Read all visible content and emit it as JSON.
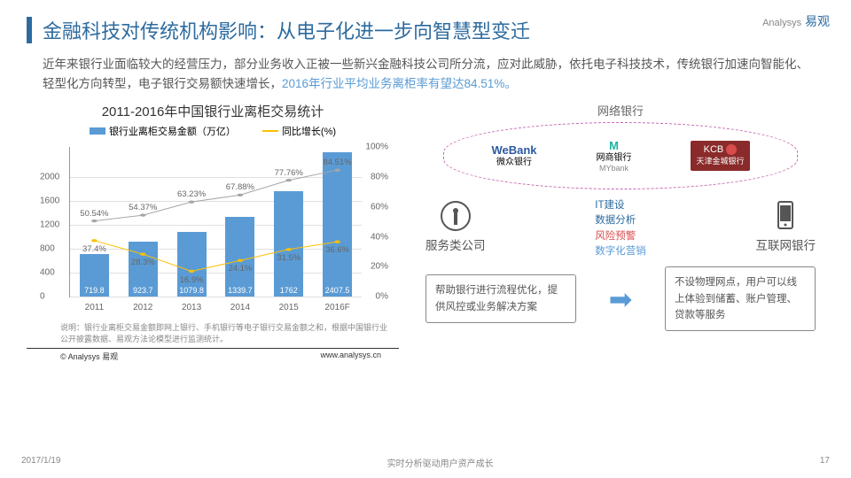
{
  "header": {
    "title": "金融科技对传统机构影响：从电子化进一步向智慧型变迁"
  },
  "logo": {
    "en": "Analysys",
    "cn": "易观"
  },
  "desc": {
    "text1": "近年来银行业面临较大的经营压力，部分业务收入正被一些新兴金融科技公司所分流，应对此威胁，依托电子科技技术，传统银行加速向智能化、轻型化方向转型，电子银行交易额快速增长，",
    "text2": "2016年行业平均业务离柜率有望达84.51%。"
  },
  "chart": {
    "title": "2011-2016年中国银行业离柜交易统计",
    "legend_bar": "银行业离柜交易金额（万亿）",
    "legend_line": "同比增长(%)",
    "categories": [
      "2011",
      "2012",
      "2013",
      "2014",
      "2015",
      "2016F"
    ],
    "bars": [
      719.8,
      923.7,
      1079.8,
      1339.7,
      1762.0,
      2407.5
    ],
    "bar_color": "#5a9bd5",
    "y_ticks": [
      0,
      400,
      800,
      1200,
      1600,
      2000
    ],
    "y_max": 2000,
    "rate_yellow": [
      37.4,
      28.3,
      16.9,
      24.1,
      31.5,
      36.6
    ],
    "rate_grey": [
      50.54,
      54.37,
      63.23,
      67.88,
      77.76,
      84.51
    ],
    "y2_ticks": [
      0,
      20,
      40,
      60,
      80,
      100
    ],
    "y2_max": 100,
    "line_yellow": "#ffc000",
    "line_grey": "#a6a6a6",
    "note": "说明：银行业离柜交易金额即网上银行、手机银行等电子银行交易金额之和，根据中国银行业公开披露数据、易观方法论模型进行监测统计。",
    "copyright": "© Analysys 易观",
    "url": "www.analysys.cn"
  },
  "right": {
    "netbank": "网络银行",
    "banks": [
      {
        "logo": "WeBank",
        "sub": "微众银行"
      },
      {
        "logo": "网商银行",
        "sub": "MYbank"
      },
      {
        "logo": "KCB",
        "sub": "天津金城银行"
      }
    ],
    "svc_label": "服务类公司",
    "mid": [
      "IT建设",
      "数据分析",
      "风险预警",
      "数字化营销"
    ],
    "net_label": "互联网银行",
    "box1": "帮助银行进行流程优化，提供风控或业务解决方案",
    "box2": "不设物理网点，用户可以线上体验到储蓄、账户管理、贷款等服务"
  },
  "footer": {
    "date": "2017/1/19",
    "slogan": "实时分析驱动用户资产成长",
    "page": "17"
  }
}
